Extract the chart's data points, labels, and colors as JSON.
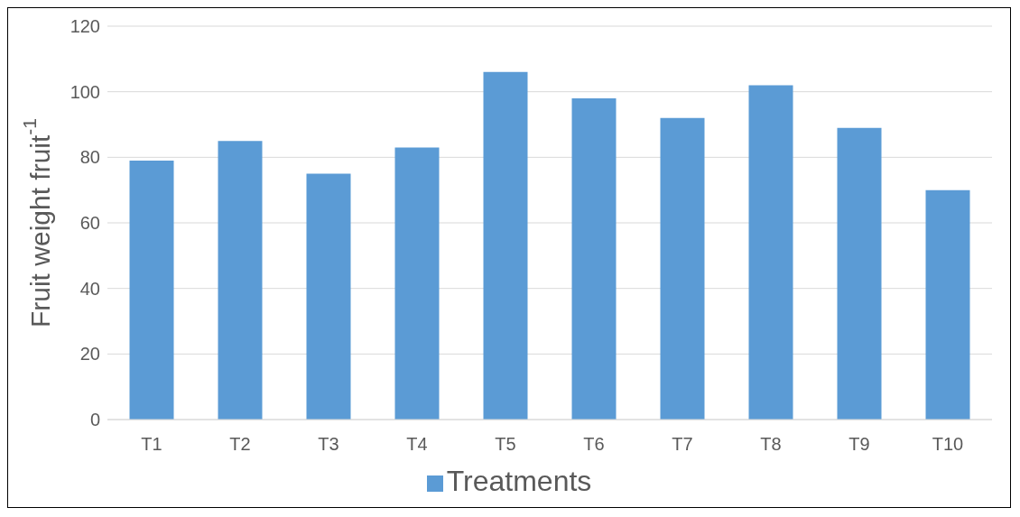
{
  "chart_data": {
    "type": "bar",
    "ylabel": "Fruit weight  fruit$^{-1}$",
    "categories": [
      "T1",
      "T2",
      "T3",
      "T4",
      "T5",
      "T6",
      "T7",
      "T8",
      "T9",
      "T10"
    ],
    "series": [
      {
        "name": "Treatments",
        "color": "#5b9bd5",
        "values": [
          79,
          85,
          75,
          83,
          106,
          98,
          92,
          102,
          89,
          70
        ]
      }
    ],
    "ylim": [
      0,
      120
    ],
    "yticks": [
      0,
      20,
      40,
      60,
      80,
      100,
      120
    ],
    "grid": "y",
    "legend": "bottom"
  }
}
